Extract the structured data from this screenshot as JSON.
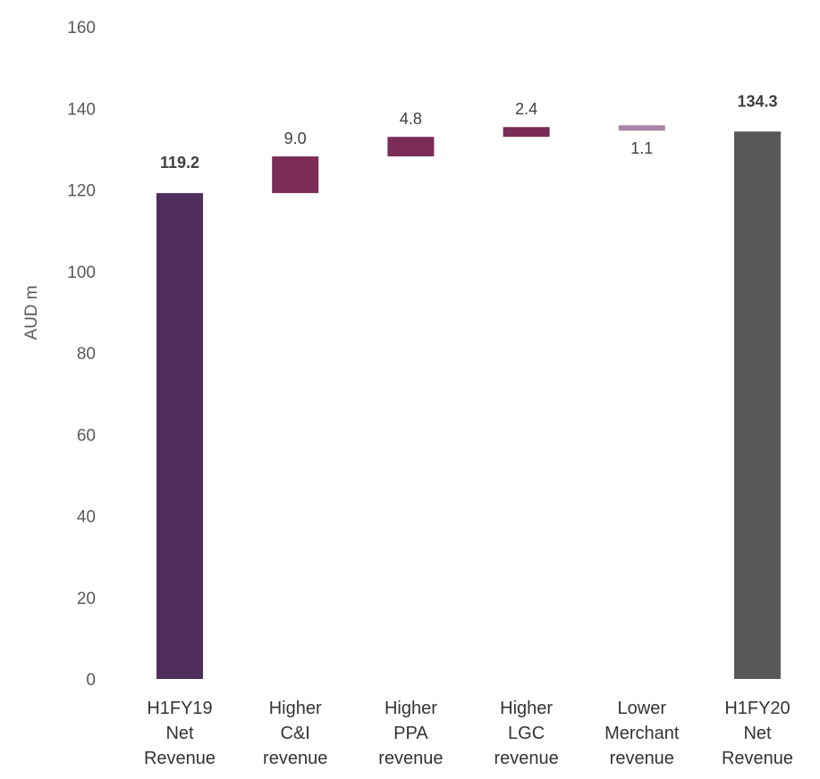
{
  "chart_data": {
    "type": "bar",
    "subtype": "waterfall",
    "ylabel": "AUD m",
    "ylim": [
      0,
      160
    ],
    "yticks": [
      0,
      20,
      40,
      60,
      80,
      100,
      120,
      140,
      160
    ],
    "grid": false,
    "legend": "none",
    "categories": [
      [
        "H1FY19",
        "Net",
        "Revenue"
      ],
      [
        "Higher",
        "C&I",
        "revenue"
      ],
      [
        "Higher",
        "PPA",
        "revenue"
      ],
      [
        "Higher",
        "LGC",
        "revenue"
      ],
      [
        "Lower",
        "Merchant",
        "revenue"
      ],
      [
        "H1FY20",
        "Net",
        "Revenue"
      ]
    ],
    "bars": [
      {
        "kind": "total",
        "start": 0,
        "end": 119.2,
        "label": "119.2",
        "color": "#4f2d5c"
      },
      {
        "kind": "increase",
        "start": 119.2,
        "end": 128.2,
        "label": "9.0",
        "color": "#7b2d57"
      },
      {
        "kind": "increase",
        "start": 128.2,
        "end": 133.0,
        "label": "4.8",
        "color": "#7b2d57"
      },
      {
        "kind": "increase",
        "start": 133.0,
        "end": 135.4,
        "label": "2.4",
        "color": "#7b2d57"
      },
      {
        "kind": "decrease",
        "start": 135.4,
        "end": 134.3,
        "label": "1.1",
        "color": "#a983a6"
      },
      {
        "kind": "total",
        "start": 0,
        "end": 134.3,
        "label": "134.3",
        "color": "#595959"
      }
    ]
  }
}
